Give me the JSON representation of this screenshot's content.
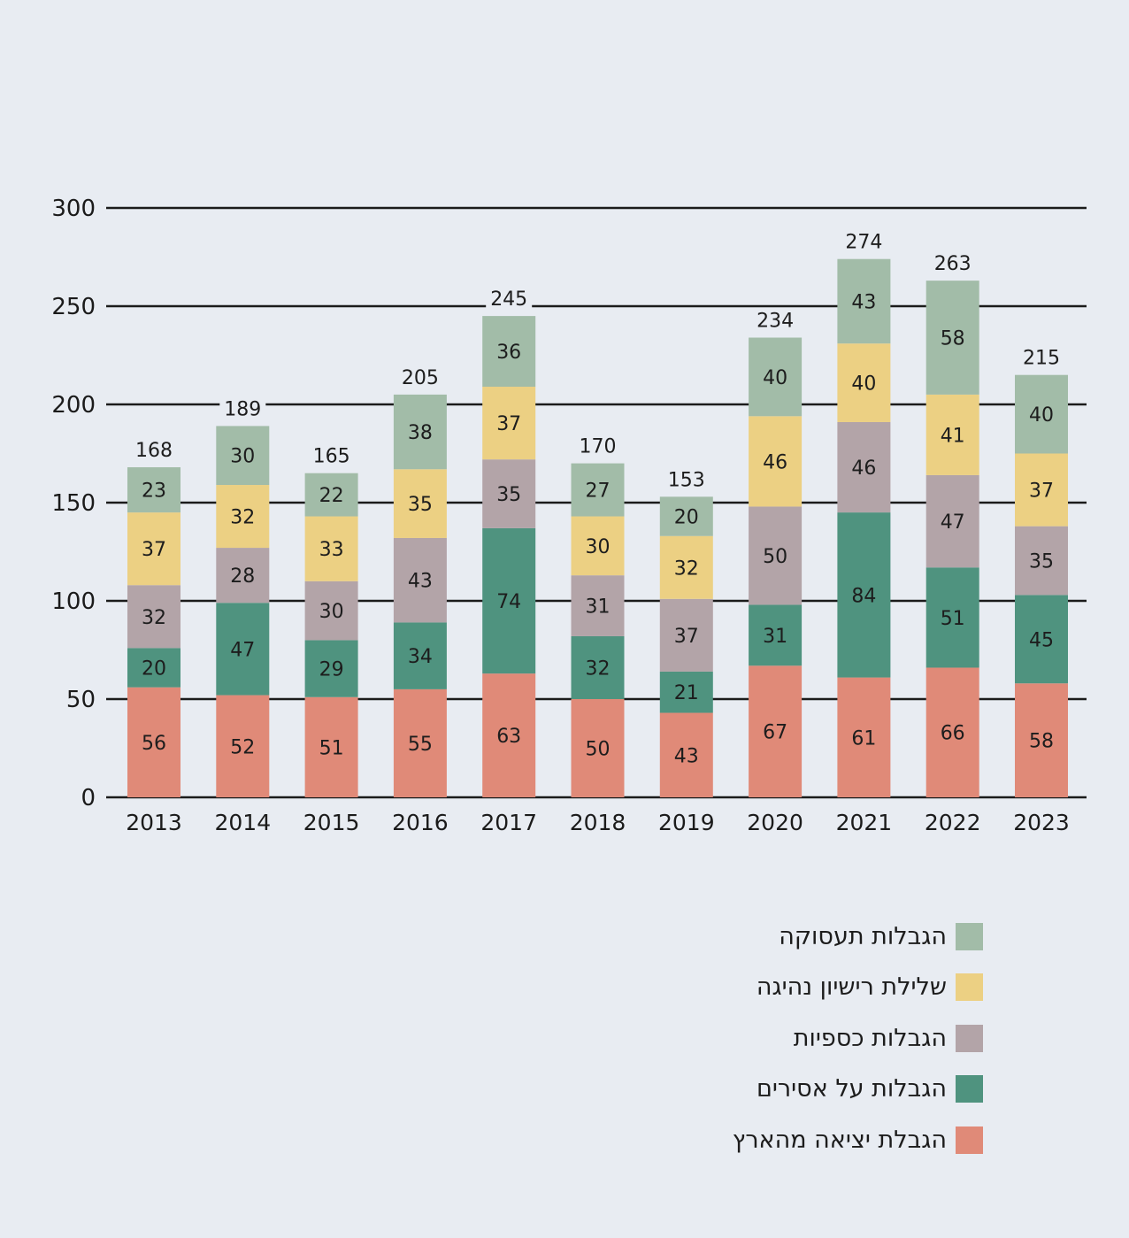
{
  "chart_data": {
    "type": "bar",
    "stacked": true,
    "title": "",
    "xlabel": "",
    "ylabel": "",
    "ylim": [
      0,
      300
    ],
    "yticks": [
      0,
      50,
      100,
      150,
      200,
      250,
      300
    ],
    "grid": true,
    "legend_position": "bottom-right",
    "categories": [
      "2013",
      "2014",
      "2015",
      "2016",
      "2017",
      "2018",
      "2019",
      "2020",
      "2021",
      "2022",
      "2023"
    ],
    "series": [
      {
        "name": "הגבלת יציאה מהארץ",
        "color": "#e08a78",
        "values": [
          56,
          52,
          51,
          55,
          63,
          50,
          43,
          67,
          61,
          66,
          58
        ]
      },
      {
        "name": "הגבלות על אסירים",
        "color": "#4f937f",
        "values": [
          20,
          47,
          29,
          34,
          74,
          32,
          21,
          31,
          84,
          51,
          45
        ]
      },
      {
        "name": "הגבלות כספיות",
        "color": "#b3a4a8",
        "values": [
          32,
          28,
          30,
          43,
          35,
          31,
          37,
          50,
          46,
          47,
          35
        ]
      },
      {
        "name": "שלילת רישיון נהיגה",
        "color": "#ecd083",
        "values": [
          37,
          32,
          33,
          35,
          37,
          30,
          32,
          46,
          40,
          41,
          37
        ]
      },
      {
        "name": "הגבלות תעסוקה",
        "color": "#a2bca8",
        "values": [
          23,
          30,
          22,
          38,
          36,
          27,
          20,
          40,
          43,
          58,
          40
        ]
      }
    ],
    "totals": [
      168,
      189,
      165,
      205,
      245,
      170,
      153,
      234,
      274,
      263,
      215
    ]
  },
  "legend": {
    "items": [
      {
        "label": "הגבלות תעסוקה",
        "color": "#a2bca8"
      },
      {
        "label": "שלילת רישיון נהיגה",
        "color": "#ecd083"
      },
      {
        "label": "הגבלות כספיות",
        "color": "#b3a4a8"
      },
      {
        "label": "הגבלות על אסירים",
        "color": "#4f937f"
      },
      {
        "label": "הגבלת יציאה מהארץ",
        "color": "#e08a78"
      }
    ]
  }
}
